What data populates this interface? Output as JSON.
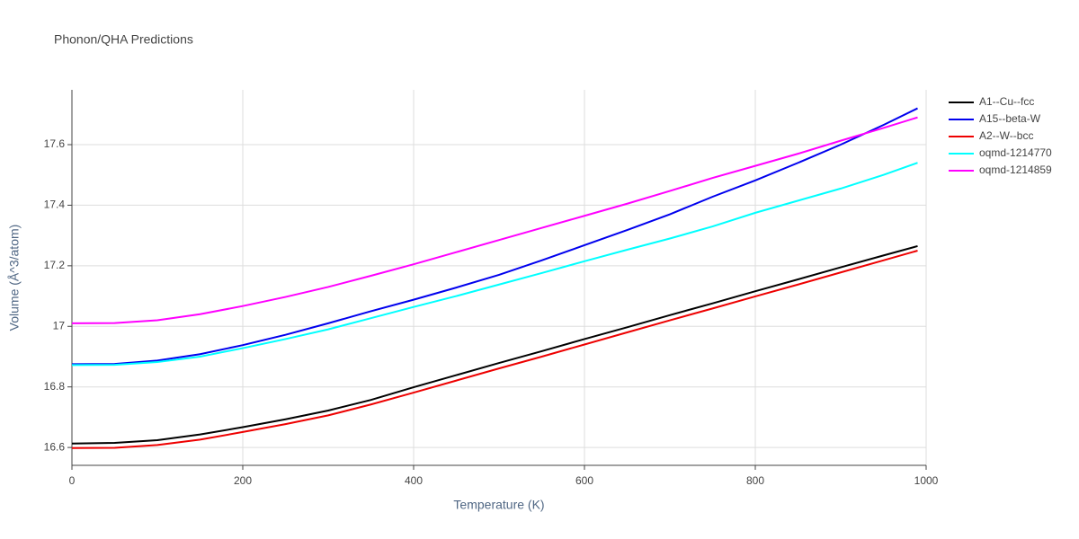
{
  "chart_data": {
    "type": "line",
    "title": "Phonon/QHA Predictions",
    "x_label": "Temperature (K)",
    "y_label": "Volume (Å^3/atom)",
    "x": [
      0,
      50,
      100,
      150,
      200,
      250,
      300,
      350,
      400,
      450,
      500,
      550,
      600,
      650,
      700,
      750,
      800,
      850,
      900,
      950,
      990
    ],
    "series": [
      {
        "name": "A1--Cu--fcc",
        "color": "#000000",
        "values": [
          16.613,
          16.615,
          16.624,
          16.643,
          16.667,
          16.693,
          16.722,
          16.757,
          16.799,
          16.839,
          16.879,
          16.918,
          16.958,
          16.997,
          17.037,
          17.076,
          17.116,
          17.155,
          17.195,
          17.234,
          17.265
        ]
      },
      {
        "name": "A15--beta-W",
        "color": "#0000ee",
        "values": [
          16.875,
          16.876,
          16.887,
          16.908,
          16.938,
          16.972,
          17.01,
          17.05,
          17.088,
          17.128,
          17.17,
          17.218,
          17.268,
          17.318,
          17.37,
          17.428,
          17.482,
          17.54,
          17.6,
          17.665,
          17.72
        ]
      },
      {
        "name": "A2--W--bcc",
        "color": "#ee0000",
        "values": [
          16.598,
          16.599,
          16.608,
          16.626,
          16.651,
          16.677,
          16.706,
          16.742,
          16.781,
          16.821,
          16.861,
          16.9,
          16.94,
          16.98,
          17.02,
          17.059,
          17.099,
          17.138,
          17.178,
          17.218,
          17.25
        ]
      },
      {
        "name": "oqmd-1214770",
        "color": "#00ffff",
        "values": [
          16.872,
          16.873,
          16.882,
          16.9,
          16.928,
          16.958,
          16.99,
          17.027,
          17.064,
          17.1,
          17.138,
          17.176,
          17.215,
          17.253,
          17.29,
          17.33,
          17.375,
          17.415,
          17.455,
          17.5,
          17.54
        ]
      },
      {
        "name": "oqmd-1214859",
        "color": "#ff00ff",
        "values": [
          17.01,
          17.011,
          17.02,
          17.04,
          17.067,
          17.097,
          17.13,
          17.167,
          17.205,
          17.245,
          17.285,
          17.325,
          17.365,
          17.405,
          17.447,
          17.49,
          17.53,
          17.57,
          17.613,
          17.655,
          17.69
        ]
      }
    ],
    "xlim": [
      0,
      1000
    ],
    "xticks": [
      0,
      200,
      400,
      600,
      800,
      1000
    ],
    "ylim": [
      16.541,
      17.781
    ],
    "yticks": [
      16.6,
      16.8,
      17,
      17.2,
      17.4,
      17.6
    ],
    "grid": true,
    "legend": "right"
  }
}
